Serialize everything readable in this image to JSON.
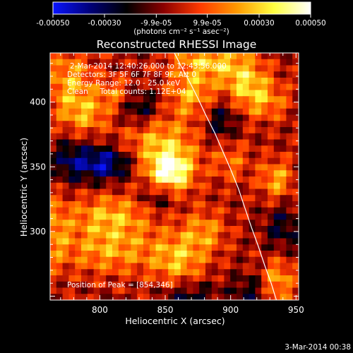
{
  "colorbar": {
    "ticks": [
      "-0.00050",
      "-0.00030",
      "-9.9e-05",
      "9.9e-05",
      "0.00030",
      "0.00050"
    ],
    "tick_values": [
      -0.0005,
      -0.0003,
      -9.9e-05,
      9.9e-05,
      0.0003,
      0.0005
    ],
    "range": [
      -0.0005,
      0.0005
    ],
    "units": "(photons cm⁻² s⁻¹ asec⁻²)",
    "colors": [
      "#0a14ff",
      "#00007a",
      "#000000",
      "#8a0000",
      "#ff3a00",
      "#ff9a00",
      "#ffff40",
      "#ffffff"
    ]
  },
  "chart_data": {
    "type": "heatmap",
    "title": "Reconstructed RHESSI Image",
    "xlabel": "Heliocentric X (arcsec)",
    "ylabel": "Heliocentric Y (arcsec)",
    "xlim": [
      762,
      952
    ],
    "ylim": [
      247,
      438
    ],
    "xticks": [
      800,
      850,
      900,
      950
    ],
    "yticks": [
      300,
      350,
      400
    ],
    "info_lines": [
      "2-Mar-2014 12:40:26.000 to 12:43:56.000",
      "Detectors: 3F 5F 6F 7F 8F 9F, Att 0",
      "Energy Range: 12.0 - 25.0 keV",
      "Clean     Total counts: 1.12E+04"
    ],
    "peak_label": "Position of Peak = [854,346]",
    "peak": [
      854,
      346
    ],
    "limb_x": [
      857,
      862,
      869,
      875,
      881,
      888,
      894,
      900,
      906,
      911,
      916,
      921,
      926,
      931,
      935
    ],
    "limb_y": [
      438,
      428,
      415,
      403,
      390,
      376,
      362,
      348,
      333,
      318,
      303,
      289,
      274,
      260,
      247
    ],
    "sources": [
      {
        "x": 854,
        "y": 346,
        "amp": 1.0,
        "sx": 12,
        "sy": 12
      },
      {
        "x": 843,
        "y": 370,
        "amp": 0.55,
        "sx": 22,
        "sy": 18
      },
      {
        "x": 870,
        "y": 408,
        "amp": 0.55,
        "sx": 13,
        "sy": 12
      },
      {
        "x": 885,
        "y": 432,
        "amp": 0.6,
        "sx": 20,
        "sy": 9
      },
      {
        "x": 911,
        "y": 416,
        "amp": 0.6,
        "sx": 13,
        "sy": 11
      },
      {
        "x": 925,
        "y": 400,
        "amp": 0.45,
        "sx": 14,
        "sy": 10
      },
      {
        "x": 777,
        "y": 414,
        "amp": 0.55,
        "sx": 13,
        "sy": 20
      },
      {
        "x": 812,
        "y": 406,
        "amp": 0.45,
        "sx": 10,
        "sy": 9
      },
      {
        "x": 790,
        "y": 390,
        "amp": 0.4,
        "sx": 12,
        "sy": 10
      },
      {
        "x": 808,
        "y": 312,
        "amp": 0.55,
        "sx": 23,
        "sy": 12
      },
      {
        "x": 808,
        "y": 285,
        "amp": 0.5,
        "sx": 27,
        "sy": 13
      },
      {
        "x": 860,
        "y": 278,
        "amp": 0.55,
        "sx": 14,
        "sy": 14
      },
      {
        "x": 880,
        "y": 300,
        "amp": 0.45,
        "sx": 12,
        "sy": 12
      },
      {
        "x": 935,
        "y": 340,
        "amp": 0.55,
        "sx": 9,
        "sy": 11
      },
      {
        "x": 936,
        "y": 262,
        "amp": 0.55,
        "sx": 9,
        "sy": 12
      },
      {
        "x": 900,
        "y": 355,
        "amp": 0.35,
        "sx": 10,
        "sy": 12
      },
      {
        "x": 765,
        "y": 300,
        "amp": 0.4,
        "sx": 8,
        "sy": 20
      },
      {
        "x": 803,
        "y": 353,
        "amp": -0.8,
        "sx": 17,
        "sy": 10
      },
      {
        "x": 830,
        "y": 395,
        "amp": -0.55,
        "sx": 13,
        "sy": 11
      },
      {
        "x": 845,
        "y": 327,
        "amp": -0.45,
        "sx": 10,
        "sy": 8
      },
      {
        "x": 893,
        "y": 385,
        "amp": -0.45,
        "sx": 9,
        "sy": 12
      },
      {
        "x": 775,
        "y": 355,
        "amp": -0.35,
        "sx": 9,
        "sy": 12
      },
      {
        "x": 940,
        "y": 303,
        "amp": -0.4,
        "sx": 10,
        "sy": 13
      },
      {
        "x": 870,
        "y": 250,
        "amp": -0.4,
        "sx": 15,
        "sy": 8
      },
      {
        "x": 915,
        "y": 255,
        "amp": -0.35,
        "sx": 10,
        "sy": 9
      }
    ],
    "grid": false
  },
  "timestamp": "3-Mar-2014 00:38"
}
